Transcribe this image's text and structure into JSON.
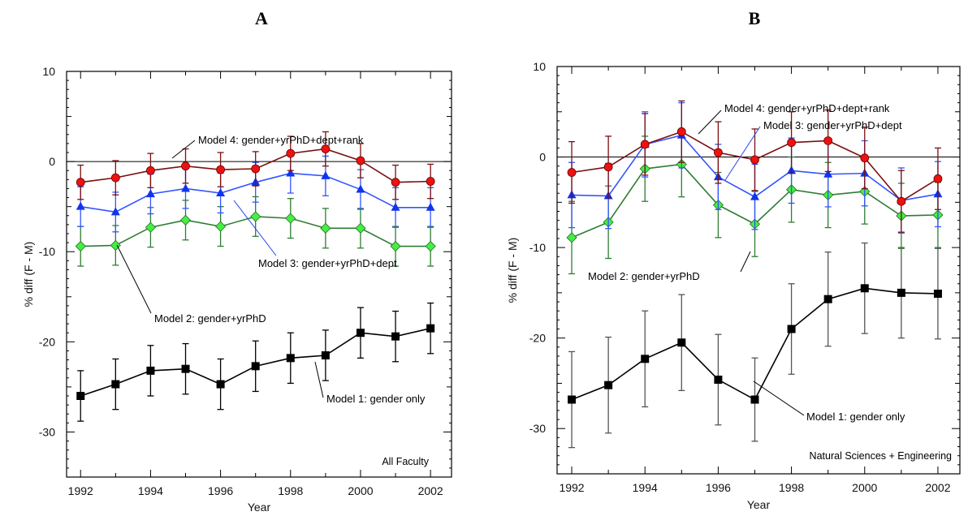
{
  "panels": [
    {
      "letter": "A",
      "type": "line",
      "xlabel": "Year",
      "ylabel": "% diff (F - M)",
      "xlim": [
        1991.6,
        2002.6
      ],
      "ylim": [
        -35,
        10
      ],
      "xticks": [
        1992,
        1994,
        1996,
        1998,
        2000,
        2002
      ],
      "yticks": [
        10,
        0,
        -10,
        -20,
        -30
      ],
      "corner_note": "All Faculty",
      "x": [
        1992,
        1993,
        1994,
        1995,
        1996,
        1997,
        1998,
        1999,
        2000,
        2001,
        2002
      ],
      "series": [
        {
          "label": "Model 1: gender only",
          "marker": "square",
          "line_color": "#000000",
          "fill_color": "#000000",
          "err_color": "#000000",
          "values": [
            -26.0,
            -24.7,
            -23.2,
            -23.0,
            -24.7,
            -22.7,
            -21.8,
            -21.5,
            -19.0,
            -19.4,
            -18.5
          ],
          "errors": [
            2.8,
            2.8,
            2.8,
            2.8,
            2.8,
            2.8,
            2.8,
            2.8,
            2.8,
            2.8,
            2.8
          ]
        },
        {
          "label": "Model 2: gender+yrPhD",
          "marker": "diamond",
          "line_color": "#2e7d32",
          "fill_color": "#44ee44",
          "err_color": "#2e7d32",
          "values": [
            -9.4,
            -9.3,
            -7.3,
            -6.5,
            -7.2,
            -6.1,
            -6.3,
            -7.4,
            -7.4,
            -9.4,
            -9.4
          ],
          "errors": [
            2.2,
            2.2,
            2.2,
            2.2,
            2.2,
            2.2,
            2.2,
            2.2,
            2.2,
            2.2,
            2.2
          ]
        },
        {
          "label": "Model 3: gender+yrPhD+dept",
          "marker": "triangle",
          "line_color": "#3355ff",
          "fill_color": "#1133ee",
          "err_color": "#3355ff",
          "values": [
            -5.0,
            -5.6,
            -3.6,
            -3.0,
            -3.5,
            -2.3,
            -1.3,
            -1.6,
            -3.1,
            -5.1,
            -5.1
          ],
          "errors": [
            2.2,
            2.2,
            2.2,
            2.2,
            2.2,
            2.2,
            2.2,
            2.2,
            2.2,
            2.2,
            2.2
          ]
        },
        {
          "label": "Model 4:  gender+yrPhD+dept+rank",
          "marker": "circle",
          "line_color": "#7a1010",
          "fill_color": "#ee1111",
          "err_color": "#7a1010",
          "values": [
            -2.3,
            -1.8,
            -1.0,
            -0.5,
            -0.9,
            -0.8,
            0.9,
            1.4,
            0.1,
            -2.3,
            -2.2
          ],
          "errors": [
            1.9,
            1.9,
            1.9,
            1.9,
            1.9,
            1.9,
            1.9,
            1.9,
            1.9,
            1.9,
            1.9
          ]
        }
      ]
    },
    {
      "letter": "B",
      "type": "line",
      "xlabel": "Year",
      "ylabel": "% diff (F - M)",
      "xlim": [
        1991.6,
        2002.6
      ],
      "ylim": [
        -35,
        10
      ],
      "xticks": [
        1992,
        1994,
        1996,
        1998,
        2000,
        2002
      ],
      "yticks": [
        10,
        0,
        -10,
        -20,
        -30
      ],
      "corner_note": "Natural Sciences + Engineering",
      "x": [
        1992,
        1993,
        1994,
        1995,
        1996,
        1997,
        1998,
        1999,
        2000,
        2001,
        2002
      ],
      "series": [
        {
          "label": "Model 1: gender only",
          "marker": "square",
          "line_color": "#000000",
          "fill_color": "#000000",
          "err_color": "#555555",
          "values": [
            -26.8,
            -25.2,
            -22.3,
            -20.5,
            -24.6,
            -26.8,
            -19.0,
            -15.7,
            -14.5,
            -15.0,
            -15.1
          ],
          "errors": [
            5.3,
            5.3,
            5.3,
            5.3,
            5.0,
            4.6,
            5.0,
            5.2,
            5.0,
            5.0,
            5.0
          ]
        },
        {
          "label": "Model 2: gender+yrPhD",
          "marker": "diamond",
          "line_color": "#2e7d32",
          "fill_color": "#44ee44",
          "err_color": "#2e7d32",
          "values": [
            -8.9,
            -7.2,
            -1.3,
            -0.8,
            -5.3,
            -7.4,
            -3.6,
            -4.2,
            -3.8,
            -6.5,
            -6.4
          ],
          "errors": [
            4.0,
            4.0,
            3.6,
            3.6,
            3.6,
            3.6,
            3.6,
            3.6,
            3.6,
            3.6,
            3.6
          ]
        },
        {
          "label": "Model 3: gender+yrPhD+dept",
          "marker": "triangle",
          "line_color": "#3355ff",
          "fill_color": "#1133ee",
          "err_color": "#3355ff",
          "values": [
            -4.2,
            -4.3,
            1.4,
            2.4,
            -2.2,
            -4.4,
            -1.5,
            -1.9,
            -1.8,
            -4.8,
            -4.1
          ],
          "errors": [
            3.6,
            3.6,
            3.6,
            3.6,
            3.6,
            3.6,
            3.6,
            3.6,
            3.6,
            3.6,
            3.6
          ]
        },
        {
          "label": "Model 4: gender+yrPhD+dept+rank",
          "marker": "circle",
          "line_color": "#7a1010",
          "fill_color": "#ee1111",
          "err_color": "#7a1010",
          "values": [
            -1.7,
            -1.1,
            1.4,
            2.8,
            0.5,
            -0.3,
            1.6,
            1.8,
            -0.1,
            -4.9,
            -2.4
          ],
          "errors": [
            3.4,
            3.4,
            3.4,
            3.4,
            3.4,
            3.4,
            3.4,
            3.4,
            3.4,
            3.4,
            3.4
          ]
        }
      ]
    }
  ]
}
